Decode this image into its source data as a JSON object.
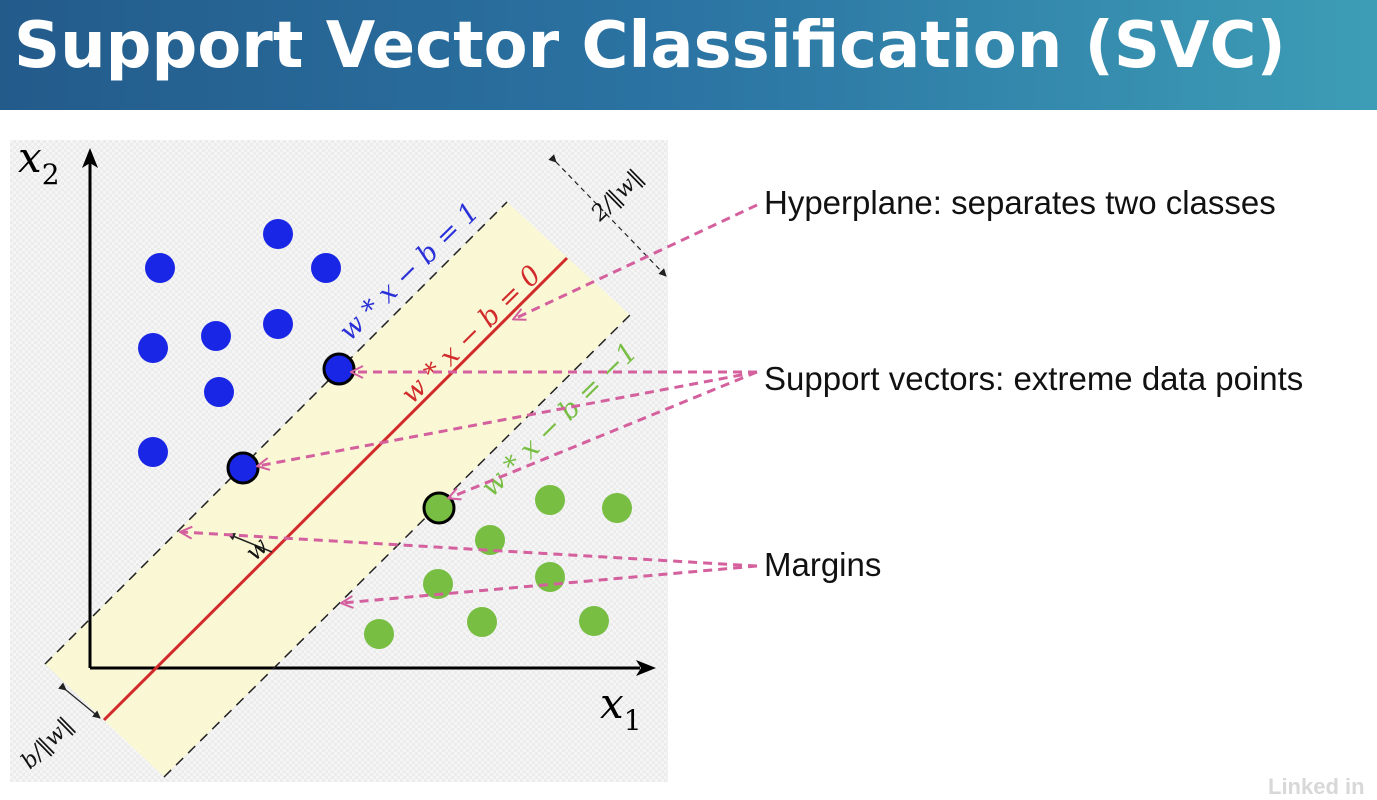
{
  "slide": {
    "title": "Support Vector Classification (SVC)"
  },
  "diagram": {
    "axis_labels": {
      "x2": "x2",
      "x1": "x1"
    },
    "lines": {
      "upper": "w * x − b = 1",
      "hyperplane": "w * x − b = 0",
      "lower": "w * x − b = −1"
    },
    "margin_width_label": "2/‖w‖",
    "offset_label": "b/‖w‖",
    "normal_vector_label": "w",
    "colors": {
      "class_a": "#1a26e6",
      "class_b": "#77be43",
      "hyperplane": "#d22b2b",
      "arrows": "#d4609e",
      "margin_band": "#fbf8d4"
    }
  },
  "callouts": {
    "hyperplane": "Hyperplane: separates two classes",
    "support_vectors": "Support vectors: extreme data points",
    "margins": "Margins"
  },
  "watermark": "Linked in"
}
